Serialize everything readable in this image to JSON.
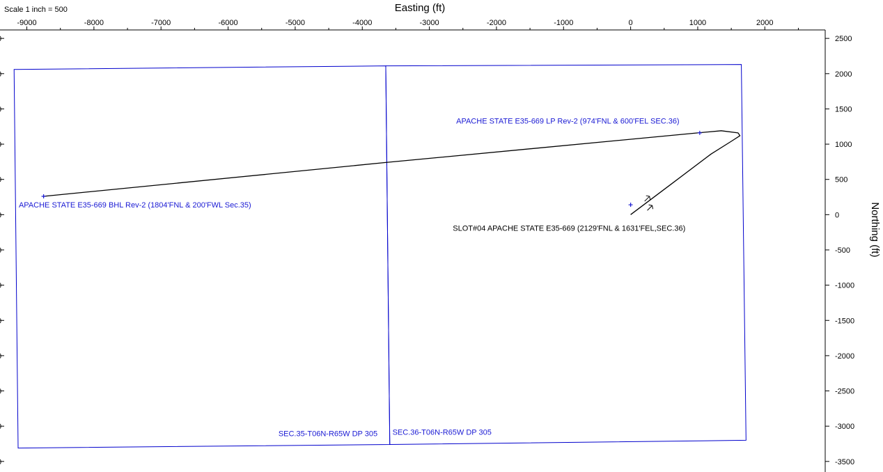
{
  "scale_note": "Scale 1 inch = 500",
  "chart_data": {
    "type": "line",
    "xlabel": "Easting (ft)",
    "ylabel": "Northing (ft)",
    "xlim": [
      -9400,
      2900
    ],
    "ylim": [
      -3650,
      2620
    ],
    "x_ticks": [
      -9000,
      -8000,
      -7000,
      -6000,
      -5000,
      -4000,
      -3000,
      -2000,
      -1000,
      0,
      1000,
      2000
    ],
    "y_ticks": [
      2500,
      2000,
      1500,
      1000,
      500,
      0,
      -500,
      -1000,
      -1500,
      -2000,
      -2500,
      -3000,
      -3500
    ],
    "grid": false,
    "colors": {
      "boundary": "#0000cc",
      "label": "#1a1ad4",
      "path": "#000000"
    },
    "section_boundaries": [
      {
        "label": "SEC.35-T06N-R65W DP 305",
        "label_at": [
          -5250,
          -3140
        ],
        "polygon": [
          [
            -9190,
            2060
          ],
          [
            -3650,
            2110
          ],
          [
            -3590,
            -3260
          ],
          [
            -9130,
            -3310
          ]
        ]
      },
      {
        "label": "SEC.36-T06N-R65W DP 305",
        "label_at": [
          -3550,
          -3120
        ],
        "polygon": [
          [
            -3650,
            2110
          ],
          [
            1650,
            2130
          ],
          [
            1720,
            -3200
          ],
          [
            -3590,
            -3260
          ]
        ]
      }
    ],
    "targets": [
      {
        "label": "APACHE STATE E35-669 LP Rev-2 (974'FNL & 600'FEL SEC.36)",
        "x": 1030,
        "y": 1160,
        "label_at": [
          -2600,
          1290
        ],
        "color": "#1a1ad4"
      },
      {
        "label": "APACHE STATE E35-669 BHL Rev-2 (1804'FNL & 200'FWL Sec.35)",
        "x": -8750,
        "y": 260,
        "label_at": [
          -9120,
          100
        ],
        "color": "#1a1ad4"
      },
      {
        "label": "",
        "x": 0,
        "y": 140,
        "color": "#1a1ad4"
      }
    ],
    "slot": {
      "label": "SLOT#04 APACHE STATE E35-669 (2129'FNL & 1631'FEL,SEC.36)",
      "x": 0,
      "y": 0,
      "label_at": [
        -2650,
        -230
      ]
    },
    "series": [
      {
        "points": [
          [
            0,
            0
          ],
          [
            600,
            430
          ],
          [
            1200,
            860
          ],
          [
            1500,
            1040
          ],
          [
            1630,
            1120
          ],
          [
            1600,
            1160
          ],
          [
            1350,
            1190
          ],
          [
            1000,
            1160
          ],
          [
            -3650,
            740
          ],
          [
            -8750,
            260
          ]
        ]
      }
    ],
    "arrows": [
      {
        "x": 250,
        "y": 220
      },
      {
        "x": 290,
        "y": 90
      }
    ]
  }
}
